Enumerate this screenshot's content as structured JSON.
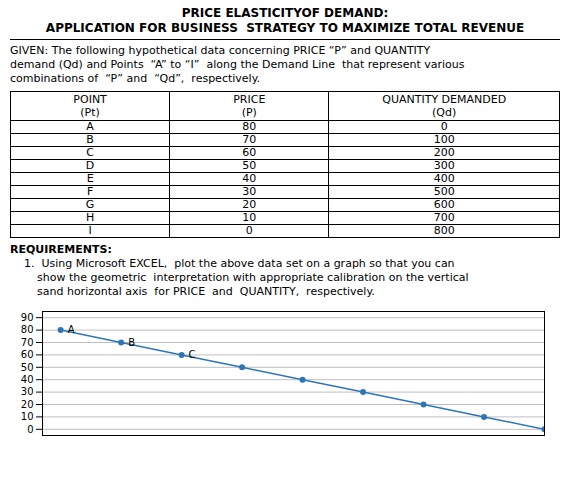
{
  "chart_data": {
    "type": "line",
    "title": "PRICE ELASTICITYOF DEMAND:",
    "subtitle": "APPLICATION FOR BUSINESS  STRATEGY TO MAXIMIZE TOTAL REVENUE",
    "given": [
      "GIVEN: The following hypothetical data concerning PRICE “P” and QUANTITY",
      "demand (Qd) and Points  “A” to “I”  along the Demand Line  that represent various",
      "combinations of  “P” and  “Qd”,  respectively."
    ],
    "table": {
      "header": [
        [
          "POINT",
          "(Pt)"
        ],
        [
          "PRICE",
          "(P)"
        ],
        [
          "QUANTITY DEMANDED",
          "(Qd)"
        ]
      ],
      "rows": [
        [
          "A",
          "80",
          "0"
        ],
        [
          "B",
          "70",
          "100"
        ],
        [
          "C",
          "60",
          "200"
        ],
        [
          "D",
          "50",
          "300"
        ],
        [
          "E",
          "40",
          "400"
        ],
        [
          "F",
          "30",
          "500"
        ],
        [
          "G",
          "20",
          "600"
        ],
        [
          "H",
          "10",
          "700"
        ],
        [
          "I",
          "0",
          "800"
        ]
      ]
    },
    "requirements_heading": "REQUIREMENTS:",
    "requirements": [
      "1.  Using Microsoft EXCEL,  plot the above data set on a graph so that you can",
      "show the geometric  interpretation with appropriate calibration on the vertical",
      "sand horizontal axis  for PRICE  and  QUANTITY,  respectively."
    ],
    "x": [
      0,
      100,
      200,
      300,
      400,
      500,
      600,
      700,
      800
    ],
    "values": [
      80,
      70,
      60,
      50,
      40,
      30,
      20,
      10,
      0
    ],
    "color": "#2E75B6",
    "marker": "circle",
    "xlim": [
      -30,
      800
    ],
    "xticks": [],
    "ylim": [
      -5,
      95
    ],
    "yticks": [
      0,
      10,
      20,
      30,
      40,
      50,
      60,
      70,
      80,
      90
    ],
    "grid": true,
    "tick_labels": "y",
    "annotations": [
      {
        "text": "A",
        "x": 0,
        "y": 80
      },
      {
        "text": "B",
        "x": 100,
        "y": 70
      },
      {
        "text": "C",
        "x": 200,
        "y": 60
      }
    ]
  }
}
